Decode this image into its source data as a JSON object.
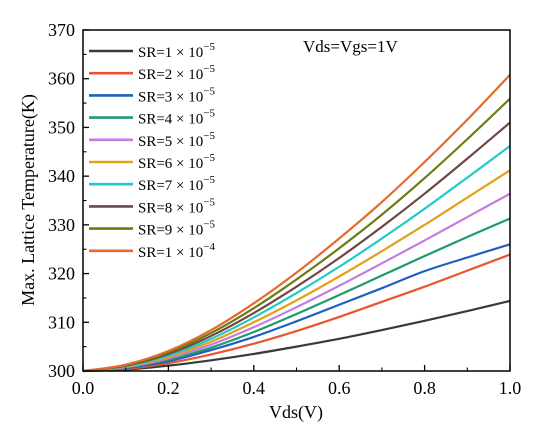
{
  "chart_data": {
    "type": "line",
    "title": "",
    "annotation": "Vds=Vgs=1V",
    "xlabel": "Vds(V)",
    "ylabel": "Max. Lattice Temperature(K)",
    "xlim": [
      0.0,
      1.0
    ],
    "ylim": [
      300,
      370
    ],
    "xticks": [
      0.0,
      0.2,
      0.4,
      0.6,
      0.8,
      1.0
    ],
    "xtick_labels": [
      "0.0",
      "0.2",
      "0.4",
      "0.6",
      "0.8",
      "1.0"
    ],
    "yticks": [
      300,
      310,
      320,
      330,
      340,
      350,
      360,
      370
    ],
    "ytick_labels": [
      "300",
      "310",
      "320",
      "330",
      "340",
      "350",
      "360",
      "370"
    ],
    "grid": false,
    "legend_position": "top-left",
    "x": [
      0.0,
      0.1,
      0.2,
      0.3,
      0.4,
      0.5,
      0.6,
      0.7,
      0.8,
      0.9,
      1.0
    ],
    "series": [
      {
        "name": "SR=1 × 10",
        "exp": "−5",
        "color": "#3a3a3a",
        "values": [
          300,
          300.3,
          301.1,
          302.2,
          303.5,
          305.0,
          306.6,
          308.4,
          310.3,
          312.3,
          314.4
        ]
      },
      {
        "name": "SR=2 × 10",
        "exp": "−5",
        "color": "#e8552f",
        "values": [
          300,
          300.4,
          301.6,
          303.4,
          305.6,
          308.2,
          311.1,
          314.2,
          317.3,
          320.6,
          323.9
        ]
      },
      {
        "name": "SR=3 × 10",
        "exp": "−5",
        "color": "#1f5fc2",
        "values": [
          300,
          300.6,
          302.0,
          304.3,
          307.0,
          310.2,
          313.6,
          317.0,
          320.5,
          323.3,
          326.0
        ]
      },
      {
        "name": "SR=4 × 10",
        "exp": "−5",
        "color": "#1e9b6a",
        "values": [
          300,
          300.7,
          302.3,
          304.8,
          308.0,
          311.7,
          315.6,
          319.6,
          323.6,
          327.5,
          331.3
        ]
      },
      {
        "name": "SR=5 × 10",
        "exp": "−5",
        "color": "#c67be0",
        "values": [
          300,
          300.8,
          302.6,
          305.4,
          309.0,
          313.1,
          317.5,
          322.1,
          326.8,
          331.6,
          336.4
        ]
      },
      {
        "name": "SR=6 × 10",
        "exp": "−5",
        "color": "#e3a019",
        "values": [
          300,
          300.9,
          302.9,
          306.0,
          310.0,
          314.5,
          319.4,
          324.6,
          330.0,
          335.6,
          341.2
        ]
      },
      {
        "name": "SR=7 × 10",
        "exp": "−5",
        "color": "#1fc9c7",
        "values": [
          300,
          301.0,
          303.2,
          306.6,
          311.0,
          316.0,
          321.4,
          327.2,
          333.3,
          339.7,
          346.2
        ]
      },
      {
        "name": "SR=8 × 10",
        "exp": "−5",
        "color": "#704747",
        "values": [
          300,
          301.1,
          303.5,
          307.2,
          311.9,
          317.3,
          323.2,
          329.6,
          336.4,
          343.6,
          351.0
        ]
      },
      {
        "name": "SR=9 × 10",
        "exp": "−5",
        "color": "#6e7a12",
        "values": [
          300,
          301.2,
          303.8,
          307.8,
          312.9,
          318.8,
          325.2,
          332.1,
          339.6,
          347.6,
          355.9
        ]
      },
      {
        "name": "SR=1 × 10",
        "exp": "−4",
        "color": "#e86a2a",
        "values": [
          300,
          301.3,
          304.1,
          308.4,
          313.9,
          320.2,
          327.2,
          334.7,
          342.9,
          351.6,
          360.8
        ]
      }
    ]
  }
}
